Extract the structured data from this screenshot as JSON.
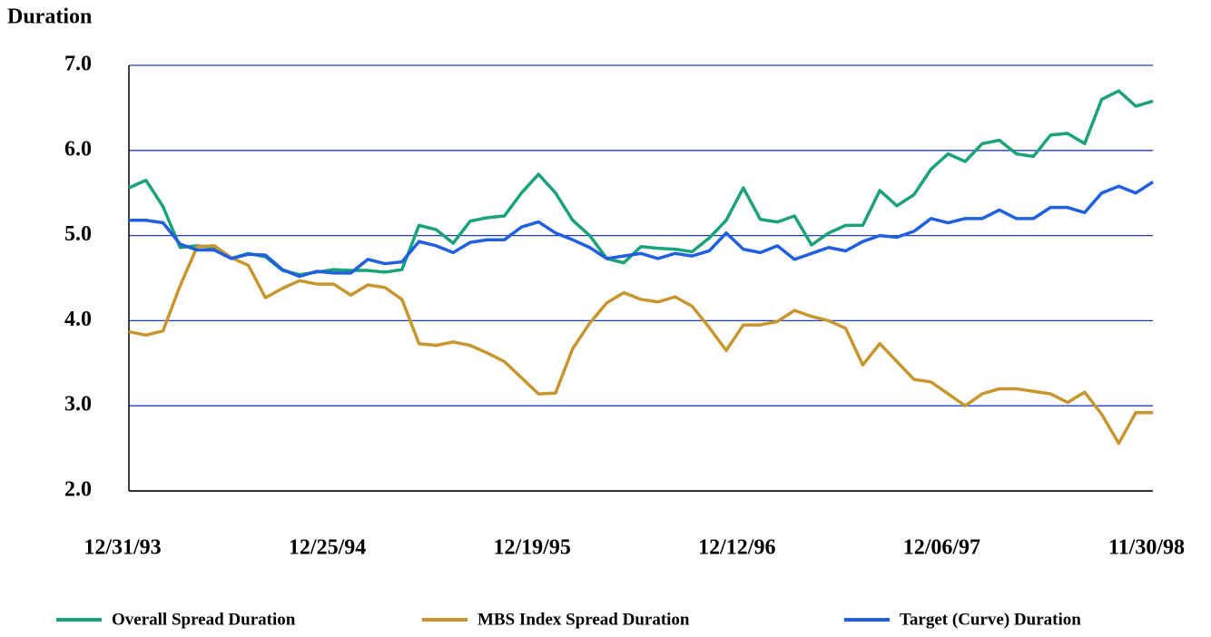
{
  "chart_data": {
    "type": "line",
    "y_label": "Duration",
    "categories": [
      "12/31/93",
      null,
      null,
      null,
      null,
      null,
      null,
      null,
      null,
      null,
      null,
      null,
      "12/25/94",
      null,
      null,
      null,
      null,
      null,
      null,
      null,
      null,
      null,
      null,
      null,
      "12/19/95",
      null,
      null,
      null,
      null,
      null,
      null,
      null,
      null,
      null,
      null,
      null,
      "12/12/96",
      null,
      null,
      null,
      null,
      null,
      null,
      null,
      null,
      null,
      null,
      null,
      "12/06/97",
      null,
      null,
      null,
      null,
      null,
      null,
      null,
      null,
      null,
      null,
      null,
      "11/30/98"
    ],
    "series": [
      {
        "name": "Overall Spread Duration",
        "color": "#1aa37a",
        "values": [
          5.56,
          5.65,
          5.34,
          4.86,
          4.88,
          4.86,
          4.73,
          4.79,
          4.75,
          4.59,
          4.54,
          4.57,
          4.6,
          4.59,
          4.59,
          4.57,
          4.6,
          5.12,
          5.07,
          4.91,
          5.17,
          5.21,
          5.23,
          5.5,
          5.72,
          5.5,
          5.18,
          5.0,
          4.73,
          4.68,
          4.87,
          4.85,
          4.84,
          4.81,
          4.97,
          5.18,
          5.56,
          5.19,
          5.16,
          5.23,
          4.89,
          5.03,
          5.12,
          5.12,
          5.53,
          5.35,
          5.48,
          5.78,
          5.96,
          5.87,
          6.08,
          6.12,
          5.96,
          5.93,
          6.18,
          6.2,
          6.08,
          6.6,
          6.7,
          6.52,
          6.58
        ]
      },
      {
        "name": "MBS Index Spread Duration",
        "color": "#c8962e",
        "values": [
          3.87,
          3.83,
          3.88,
          4.41,
          4.87,
          4.88,
          4.74,
          4.65,
          4.27,
          4.38,
          4.47,
          4.43,
          4.43,
          4.3,
          4.42,
          4.39,
          4.25,
          3.73,
          3.71,
          3.75,
          3.71,
          3.62,
          3.52,
          3.33,
          3.14,
          3.15,
          3.67,
          3.97,
          4.21,
          4.33,
          4.25,
          4.22,
          4.28,
          4.17,
          3.92,
          3.65,
          3.95,
          3.95,
          3.99,
          4.12,
          4.05,
          4.0,
          3.91,
          3.48,
          3.73,
          3.52,
          3.31,
          3.28,
          3.14,
          3.0,
          3.14,
          3.2,
          3.2,
          3.17,
          3.14,
          3.04,
          3.16,
          2.9,
          2.56,
          2.92,
          2.92
        ]
      },
      {
        "name": "Target (Curve) Duration",
        "color": "#1f5fe0",
        "values": [
          5.18,
          5.18,
          5.15,
          4.9,
          4.83,
          4.83,
          4.73,
          4.78,
          4.77,
          4.6,
          4.52,
          4.58,
          4.56,
          4.56,
          4.72,
          4.67,
          4.69,
          4.93,
          4.88,
          4.8,
          4.92,
          4.95,
          4.95,
          5.1,
          5.16,
          5.03,
          4.95,
          4.86,
          4.73,
          4.76,
          4.79,
          4.73,
          4.79,
          4.76,
          4.82,
          5.03,
          4.84,
          4.8,
          4.88,
          4.72,
          4.79,
          4.86,
          4.82,
          4.93,
          5.0,
          4.98,
          5.05,
          5.2,
          5.15,
          5.2,
          5.2,
          5.3,
          5.2,
          5.2,
          5.33,
          5.33,
          5.27,
          5.5,
          5.58,
          5.5,
          5.63
        ]
      }
    ],
    "ylim": [
      2,
      7
    ],
    "yticks": [
      {
        "value": 2,
        "label": "2.0"
      },
      {
        "value": 3,
        "label": "3.0"
      },
      {
        "value": 4,
        "label": "4.0"
      },
      {
        "value": 5,
        "label": "5.0"
      },
      {
        "value": 6,
        "label": "6.0"
      },
      {
        "value": 7,
        "label": "7.0"
      }
    ],
    "grid": true,
    "grid_color": "#2040c0",
    "legend": "bottom"
  }
}
